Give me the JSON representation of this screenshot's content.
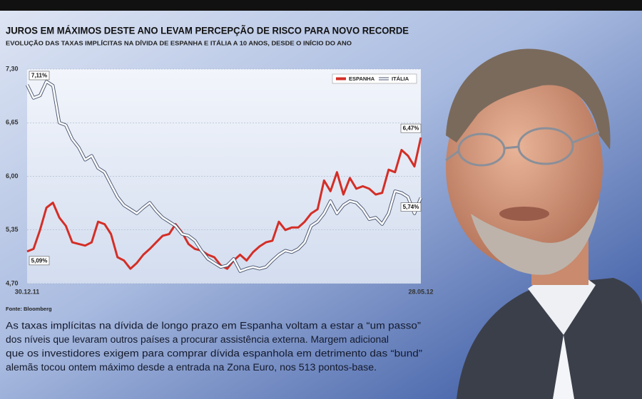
{
  "chart_data": {
    "type": "line",
    "title": "JUROS EM MÁXIMOS DESTE ANO LEVAM PERCEPÇÃO DE RISCO PARA NOVO RECORDE",
    "subtitle": "EVOLUÇÃO DAS TAXAS IMPLÍCITAS NA DÍVIDA DE ESPANHA E ITÁLIA A 10 ANOS, DESDE O INÍCIO DO ANO",
    "source": "Fonte: Bloomberg",
    "text": [
      "As taxas implícitas na dívida de longo prazo em Espanha voltam a estar a “um passo”",
      "dos níveis que levaram outros países a procurar assistência externa. Margem adicional",
      "que os investidores exigem para comprar dívida espanhola em detrimento das “bund”",
      "alemãs tocou ontem máximo desde a entrada na Zona Euro, nos 513 pontos-base."
    ],
    "categories": [
      "30.12.11",
      null,
      null,
      null,
      null,
      null,
      null,
      null,
      null,
      null,
      null,
      null,
      null,
      null,
      null,
      null,
      null,
      null,
      null,
      null,
      null,
      null,
      null,
      null,
      null,
      null,
      null,
      null,
      null,
      null,
      null,
      null,
      null,
      null,
      null,
      null,
      null,
      null,
      null,
      null,
      null,
      null,
      null,
      null,
      null,
      null,
      null,
      null,
      null,
      null,
      null,
      null,
      null,
      null,
      null,
      null,
      null,
      null,
      null,
      null,
      null,
      "28.05.12"
    ],
    "series": [
      {
        "name": "ESPANHA",
        "color": "#d42e26",
        "values": [
          5.09,
          5.12,
          5.35,
          5.62,
          5.68,
          5.5,
          5.4,
          5.2,
          5.18,
          5.16,
          5.2,
          5.45,
          5.42,
          5.3,
          5.02,
          4.98,
          4.88,
          4.95,
          5.05,
          5.12,
          5.2,
          5.28,
          5.3,
          5.42,
          5.32,
          5.18,
          5.12,
          5.1,
          5.05,
          5.02,
          4.92,
          4.88,
          4.98,
          5.05,
          4.98,
          5.08,
          5.15,
          5.2,
          5.22,
          5.45,
          5.35,
          5.38,
          5.38,
          5.45,
          5.55,
          5.6,
          5.95,
          5.82,
          6.05,
          5.78,
          5.98,
          5.85,
          5.88,
          5.85,
          5.78,
          5.8,
          6.08,
          6.05,
          6.32,
          6.25,
          6.12,
          6.47
        ],
        "value_labels": [
          "5,09%",
          null,
          null,
          null,
          null,
          null,
          null,
          null,
          null,
          null,
          null,
          null,
          null,
          null,
          null,
          null,
          null,
          null,
          null,
          null,
          null,
          null,
          null,
          null,
          null,
          null,
          null,
          null,
          null,
          null,
          null,
          null,
          null,
          null,
          null,
          null,
          null,
          null,
          null,
          null,
          null,
          null,
          null,
          null,
          null,
          null,
          null,
          null,
          null,
          null,
          null,
          null,
          null,
          null,
          null,
          null,
          null,
          null,
          null,
          null,
          null,
          "6,47%"
        ]
      },
      {
        "name": "ITÁLIA",
        "color": "#ffffff",
        "values": [
          7.11,
          6.95,
          6.98,
          7.15,
          7.1,
          6.65,
          6.62,
          6.45,
          6.35,
          6.2,
          6.25,
          6.1,
          6.05,
          5.9,
          5.75,
          5.65,
          5.6,
          5.55,
          5.62,
          5.68,
          5.58,
          5.5,
          5.45,
          5.4,
          5.3,
          5.28,
          5.22,
          5.1,
          5.0,
          4.95,
          4.9,
          4.92,
          5.0,
          4.85,
          4.88,
          4.9,
          4.88,
          4.9,
          4.98,
          5.05,
          5.1,
          5.08,
          5.12,
          5.2,
          5.4,
          5.45,
          5.55,
          5.7,
          5.55,
          5.65,
          5.7,
          5.68,
          5.6,
          5.48,
          5.5,
          5.42,
          5.55,
          5.82,
          5.8,
          5.75,
          5.55,
          5.74
        ],
        "value_labels": [
          "7,11%",
          null,
          null,
          null,
          null,
          null,
          null,
          null,
          null,
          null,
          null,
          null,
          null,
          null,
          null,
          null,
          null,
          null,
          null,
          null,
          null,
          null,
          null,
          null,
          null,
          null,
          null,
          null,
          null,
          null,
          null,
          null,
          null,
          null,
          null,
          null,
          null,
          null,
          null,
          null,
          null,
          null,
          null,
          null,
          null,
          null,
          null,
          null,
          null,
          null,
          null,
          null,
          null,
          null,
          null,
          null,
          null,
          null,
          null,
          null,
          null,
          "5,74%"
        ]
      }
    ],
    "ylim": [
      4.7,
      7.3
    ],
    "yticks": [
      {
        "value": 4.7,
        "label": "4,70"
      },
      {
        "value": 5.35,
        "label": "5,35"
      },
      {
        "value": 6.0,
        "label": "6,00"
      },
      {
        "value": 6.65,
        "label": "6,65"
      },
      {
        "value": 7.3,
        "label": "7,30"
      }
    ],
    "grid": true,
    "legend": "top-right"
  }
}
